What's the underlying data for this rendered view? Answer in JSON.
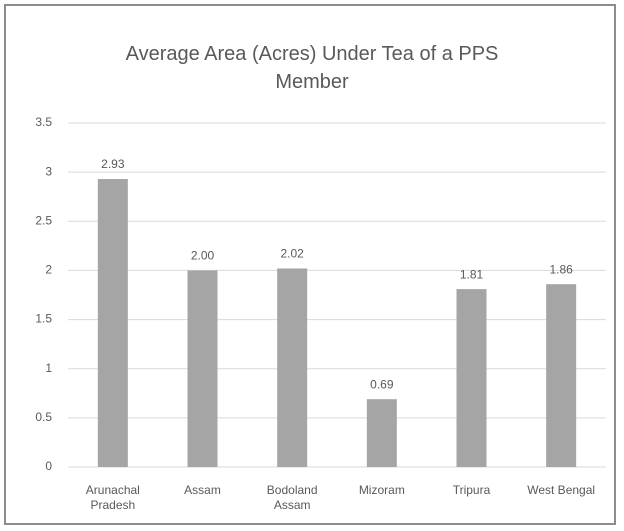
{
  "chart_data": {
    "type": "bar",
    "title": "Average Area (Acres) Under Tea of a PPS Member",
    "categories": [
      "Arunachal Pradesh",
      "Assam",
      "Bodoland Assam",
      "Mizoram",
      "Tripura",
      "West Bengal"
    ],
    "values": [
      2.93,
      2.0,
      2.02,
      0.69,
      1.81,
      1.86
    ],
    "value_labels": [
      "2.93",
      "2.00",
      "2.02",
      "0.69",
      "1.81",
      "1.86"
    ],
    "color": "#a5a5a5",
    "ylim": [
      0,
      3.5
    ],
    "yticks": [
      0,
      0.5,
      1,
      1.5,
      2,
      2.5,
      3,
      3.5
    ],
    "grid": true
  }
}
